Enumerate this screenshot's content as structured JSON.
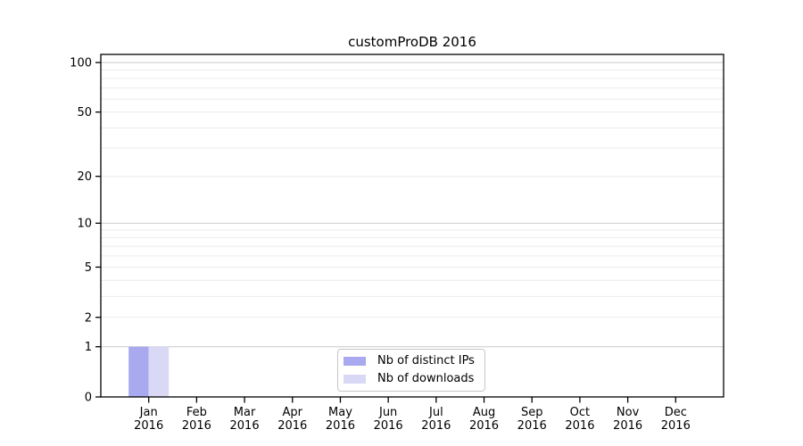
{
  "chart_data": {
    "type": "bar",
    "title": "customProDB 2016",
    "categories_months": [
      "Jan",
      "Feb",
      "Mar",
      "Apr",
      "May",
      "Jun",
      "Jul",
      "Aug",
      "Sep",
      "Oct",
      "Nov",
      "Dec"
    ],
    "categories_year": "2016",
    "series": [
      {
        "name": "Nb of distinct IPs",
        "key": "distinct-ips",
        "color": "#a9a9ef",
        "values": [
          1,
          0,
          0,
          0,
          0,
          0,
          0,
          0,
          0,
          0,
          0,
          0
        ]
      },
      {
        "name": "Nb of downloads",
        "key": "downloads",
        "color": "#d9d9f6",
        "values": [
          1,
          0,
          0,
          0,
          0,
          0,
          0,
          0,
          0,
          0,
          0,
          0
        ]
      }
    ],
    "y_axis": {
      "scale": "log1p",
      "tick_labels": [
        0,
        1,
        2,
        5,
        10,
        20,
        50,
        100
      ],
      "major_gridlines": [
        1,
        10,
        100
      ],
      "minor_gridlines": [
        2,
        3,
        4,
        5,
        6,
        7,
        8,
        9,
        20,
        30,
        40,
        50,
        60,
        70,
        80,
        90
      ],
      "ylim": [
        0,
        112
      ]
    },
    "legend": {
      "position": "lower center"
    },
    "grid": true
  },
  "colors": {
    "background": "#ffffff",
    "axis": "#000000",
    "grid_major": "#c9c9c9",
    "grid_minor": "#ebebeb",
    "text": "#000000"
  }
}
